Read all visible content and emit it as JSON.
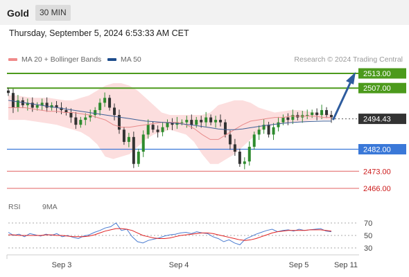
{
  "header": {
    "title": "Gold",
    "timeframe": "30 MIN"
  },
  "datetime": "Thursday, September 5, 2024 6:53:33 AM CET",
  "legend": {
    "bollinger_label": "MA 20 + Bollinger Bands",
    "bollinger_color": "#f08a8a",
    "ma50_label": "MA 50",
    "ma50_color": "#1e4d8c",
    "credit": "Research © 2024 Trading Central"
  },
  "rsi_legend": {
    "rsi_label": "RSI",
    "rsi_color": "#4a7bd0",
    "ma_label": "9MA",
    "ma_color": "#e02020"
  },
  "levels": [
    {
      "label": "2513.00",
      "value": 2513,
      "kind": "resistance"
    },
    {
      "label": "2507.00",
      "value": 2507,
      "kind": "resistance"
    },
    {
      "label": "2494.43",
      "value": 2494.43,
      "kind": "current"
    },
    {
      "label": "2482.00",
      "value": 2482,
      "kind": "pivot"
    },
    {
      "label": "2473.00",
      "value": 2473,
      "kind": "support"
    },
    {
      "label": "2466.00",
      "value": 2466,
      "kind": "support"
    }
  ],
  "rsi_ticks": [
    "70",
    "50",
    "30"
  ],
  "x_ticks": [
    "Sep 3",
    "Sep 4",
    "Sep 5",
    "Sep 11"
  ],
  "chart_data": {
    "type": "candlestick",
    "title": "Gold",
    "timeframe": "30 MIN",
    "x_ticks": [
      "Sep 3",
      "Sep 4",
      "Sep 5",
      "Sep 11"
    ],
    "y_range": [
      2464,
      2516
    ],
    "price_levels": [
      2513,
      2507,
      2494.43,
      2482,
      2473,
      2466
    ],
    "current_price": 2494.43,
    "close_series": [
      2505,
      2499,
      2502,
      2500,
      2501,
      2499,
      2500,
      2501,
      2499,
      2500,
      2499,
      2498,
      2497,
      2495,
      2492,
      2494,
      2495,
      2496,
      2498,
      2501,
      2503,
      2499,
      2496,
      2490,
      2485,
      2487,
      2476,
      2481,
      2488,
      2492,
      2490,
      2489,
      2491,
      2493,
      2492,
      2493,
      2493,
      2494,
      2492,
      2494,
      2493,
      2495,
      2493,
      2494,
      2493,
      2488,
      2484,
      2481,
      2476,
      2477,
      2483,
      2488,
      2490,
      2492,
      2488,
      2491,
      2493,
      2495,
      2494,
      2496,
      2495,
      2496,
      2496,
      2497,
      2496,
      2498,
      2496,
      2495
    ],
    "bollinger_upper": [
      2504,
      2504,
      2503.5,
      2503,
      2503,
      2503,
      2502.5,
      2502,
      2502,
      2503,
      2504,
      2506,
      2508,
      2509,
      2509,
      2508,
      2506,
      2503,
      2500,
      2497,
      2496,
      2496,
      2496,
      2496,
      2496,
      2497,
      2500,
      2501,
      2502,
      2502,
      2501,
      2499,
      2498,
      2497,
      2497.5,
      2498,
      2498,
      2497.5,
      2497,
      2496.5,
      2496.5
    ],
    "bollinger_lower": [
      2494,
      2494,
      2494,
      2493.5,
      2493,
      2492.5,
      2492,
      2491,
      2490,
      2489,
      2487,
      2484,
      2479,
      2478,
      2479,
      2480,
      2483,
      2486,
      2488,
      2489,
      2490,
      2489,
      2488,
      2485,
      2480,
      2476,
      2476,
      2478,
      2480,
      2483,
      2486,
      2489,
      2491,
      2492,
      2492.5,
      2493,
      2493,
      2493.5,
      2494,
      2494,
      2494
    ],
    "ma20": [
      2499,
      2499,
      2499,
      2498.5,
      2498,
      2497.5,
      2497.5,
      2497,
      2497,
      2496.5,
      2496,
      2495,
      2494,
      2492,
      2491,
      2491,
      2491.5,
      2492,
      2492.5,
      2493,
      2493,
      2493,
      2492,
      2490.5,
      2488,
      2486,
      2486,
      2488,
      2490,
      2492,
      2493.5,
      2494,
      2494.5,
      2495,
      2495,
      2495.5,
      2495.5,
      2495.5,
      2495.5,
      2495,
      2495
    ],
    "ma50": [
      2502,
      2501.5,
      2501,
      2500.5,
      2500,
      2499.5,
      2499,
      2498.5,
      2498,
      2497.5,
      2497,
      2496.5,
      2496,
      2495.5,
      2495,
      2494.5,
      2494,
      2493.5,
      2493.3,
      2493,
      2492.8,
      2492.5,
      2492.2,
      2491.8,
      2491.3,
      2490.8,
      2490.3,
      2490,
      2490,
      2490.3,
      2490.8,
      2491.3,
      2491.8,
      2492.2,
      2492.6,
      2492.9,
      2493.1,
      2493.3,
      2493.4,
      2493.5,
      2493.5
    ],
    "rsi": {
      "levels": [
        70,
        50,
        30
      ],
      "rsi_values": [
        55,
        50,
        52,
        48,
        53,
        51,
        49,
        52,
        50,
        53,
        48,
        50,
        47,
        45,
        49,
        51,
        55,
        58,
        62,
        64,
        70,
        58,
        60,
        48,
        40,
        38,
        42,
        44,
        46,
        49,
        51,
        52,
        54,
        55,
        53,
        56,
        54,
        53,
        48,
        45,
        40,
        43,
        38,
        35,
        44,
        48,
        52,
        55,
        58,
        60,
        56,
        58,
        59,
        57,
        60,
        58,
        59,
        60,
        61,
        57,
        56
      ],
      "ma_values": [
        51,
        51,
        50,
        50,
        50,
        50,
        50,
        51,
        51,
        50,
        50,
        49,
        48,
        48,
        48,
        49,
        51,
        54,
        57,
        59,
        61,
        61,
        60,
        58,
        54,
        50,
        48,
        46,
        45,
        45,
        46,
        48,
        50,
        51,
        52,
        53,
        54,
        54,
        53,
        51,
        49,
        47,
        45,
        43,
        42,
        43,
        45,
        48,
        51,
        54,
        56,
        57,
        58,
        58,
        58,
        58,
        59,
        59,
        59,
        58,
        57
      ]
    }
  }
}
